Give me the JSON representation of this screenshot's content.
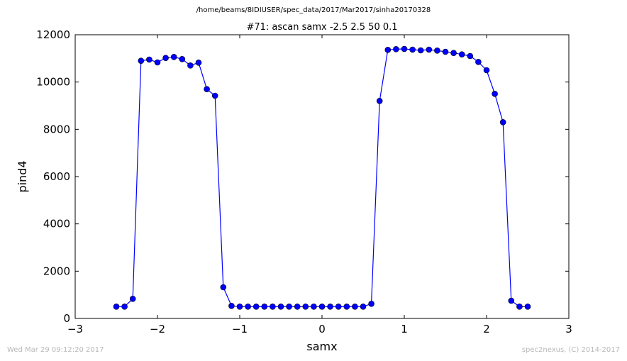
{
  "figure": {
    "suptitle": "/home/beams/8IDIUSER/spec_data/2017/Mar2017/sinha20170328",
    "footer_left": "Wed Mar 29 09:12:20 2017",
    "footer_right": "spec2nexus, (C) 2014-2017"
  },
  "chart_data": {
    "type": "line",
    "title": "#71: ascan  samx -2.5 2.5  50 0.1",
    "xlabel": "samx",
    "ylabel": "pind4",
    "xlim": [
      -3,
      3
    ],
    "ylim": [
      0,
      12000
    ],
    "xticks": [
      -3,
      -2,
      -1,
      0,
      1,
      2,
      3
    ],
    "xtick_labels": [
      "−3",
      "−2",
      "−1",
      "0",
      "1",
      "2",
      "3"
    ],
    "yticks": [
      0,
      2000,
      4000,
      6000,
      8000,
      10000,
      12000
    ],
    "ytick_labels": [
      "0",
      "2000",
      "4000",
      "6000",
      "8000",
      "10000",
      "12000"
    ],
    "grid": false,
    "line_color": "#0000ff",
    "marker": "circle",
    "x": [
      -2.5,
      -2.4,
      -2.3,
      -2.2,
      -2.1,
      -2.0,
      -1.9,
      -1.8,
      -1.7,
      -1.6,
      -1.5,
      -1.4,
      -1.3,
      -1.2,
      -1.1,
      -1.0,
      -0.9,
      -0.8,
      -0.7,
      -0.6,
      -0.5,
      -0.4,
      -0.3,
      -0.2,
      -0.1,
      0.0,
      0.1,
      0.2,
      0.3,
      0.4,
      0.5,
      0.6,
      0.7,
      0.8,
      0.9,
      1.0,
      1.1,
      1.2,
      1.3,
      1.4,
      1.5,
      1.6,
      1.7,
      1.8,
      1.9,
      2.0,
      2.1,
      2.2,
      2.3,
      2.4,
      2.5
    ],
    "y": [
      500,
      500,
      830,
      10900,
      10950,
      10830,
      11020,
      11060,
      10970,
      10700,
      10820,
      9700,
      9420,
      1320,
      530,
      500,
      500,
      500,
      500,
      500,
      500,
      500,
      500,
      500,
      500,
      500,
      500,
      500,
      500,
      500,
      500,
      620,
      9200,
      11360,
      11390,
      11400,
      11370,
      11340,
      11370,
      11330,
      11280,
      11230,
      11170,
      11100,
      10850,
      10500,
      9500,
      8300,
      750,
      500,
      500
    ]
  }
}
